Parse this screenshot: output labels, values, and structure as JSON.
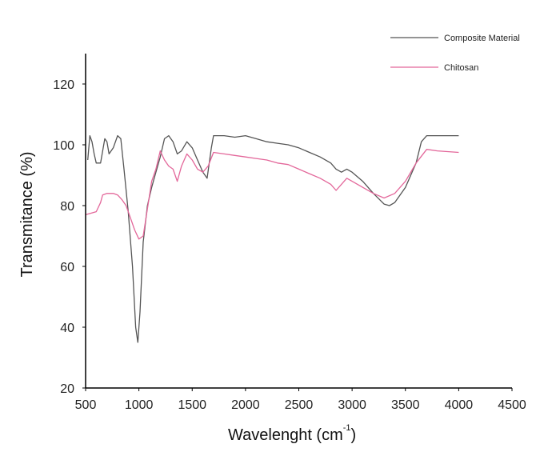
{
  "chart_data": {
    "type": "line",
    "title": "",
    "xlabel": "Wavelenght (cm",
    "xlabel_sup": "-1",
    "xlabel_close": ")",
    "ylabel": "Transmitance (%)",
    "xlim": [
      500,
      4500
    ],
    "ylim": [
      20,
      130
    ],
    "xticks": [
      500,
      1000,
      1500,
      2000,
      2500,
      3000,
      3500,
      4000,
      4500
    ],
    "yticks": [
      20,
      40,
      60,
      80,
      100,
      120
    ],
    "grid": false,
    "legend_position": "top-right",
    "series": [
      {
        "name": "Composite Material",
        "color": "#555555",
        "points": [
          [
            520,
            95
          ],
          [
            540,
            103
          ],
          [
            560,
            101
          ],
          [
            580,
            97
          ],
          [
            600,
            94
          ],
          [
            640,
            94
          ],
          [
            680,
            102
          ],
          [
            700,
            101
          ],
          [
            720,
            97
          ],
          [
            760,
            99
          ],
          [
            800,
            103
          ],
          [
            830,
            102
          ],
          [
            860,
            92
          ],
          [
            900,
            78
          ],
          [
            940,
            60
          ],
          [
            970,
            40
          ],
          [
            990,
            35
          ],
          [
            1010,
            45
          ],
          [
            1040,
            68
          ],
          [
            1080,
            80
          ],
          [
            1120,
            86
          ],
          [
            1160,
            91
          ],
          [
            1200,
            96
          ],
          [
            1240,
            102
          ],
          [
            1280,
            103
          ],
          [
            1320,
            101
          ],
          [
            1360,
            97
          ],
          [
            1400,
            98
          ],
          [
            1450,
            101
          ],
          [
            1500,
            99
          ],
          [
            1550,
            95
          ],
          [
            1600,
            91
          ],
          [
            1640,
            89
          ],
          [
            1680,
            99
          ],
          [
            1700,
            103
          ],
          [
            1800,
            103
          ],
          [
            1900,
            102.5
          ],
          [
            2000,
            103
          ],
          [
            2100,
            102
          ],
          [
            2200,
            101
          ],
          [
            2300,
            100.5
          ],
          [
            2400,
            100
          ],
          [
            2500,
            99
          ],
          [
            2600,
            97.5
          ],
          [
            2700,
            96
          ],
          [
            2800,
            94
          ],
          [
            2850,
            92
          ],
          [
            2900,
            91
          ],
          [
            2950,
            92
          ],
          [
            3000,
            91
          ],
          [
            3100,
            88
          ],
          [
            3200,
            84
          ],
          [
            3300,
            80.5
          ],
          [
            3350,
            80
          ],
          [
            3400,
            81
          ],
          [
            3500,
            86
          ],
          [
            3600,
            94
          ],
          [
            3650,
            101
          ],
          [
            3700,
            103
          ],
          [
            3800,
            103
          ],
          [
            4000,
            103
          ]
        ]
      },
      {
        "name": "Chitosan",
        "color": "#e3679a",
        "points": [
          [
            500,
            77
          ],
          [
            550,
            77.5
          ],
          [
            600,
            78
          ],
          [
            640,
            81
          ],
          [
            660,
            83.5
          ],
          [
            700,
            84
          ],
          [
            760,
            84
          ],
          [
            800,
            83.5
          ],
          [
            840,
            82
          ],
          [
            880,
            80
          ],
          [
            920,
            76
          ],
          [
            960,
            72
          ],
          [
            1000,
            69
          ],
          [
            1040,
            70
          ],
          [
            1080,
            79
          ],
          [
            1120,
            88
          ],
          [
            1160,
            92
          ],
          [
            1200,
            98
          ],
          [
            1240,
            95
          ],
          [
            1280,
            93
          ],
          [
            1320,
            92
          ],
          [
            1360,
            88
          ],
          [
            1400,
            93
          ],
          [
            1450,
            97
          ],
          [
            1500,
            95
          ],
          [
            1550,
            92
          ],
          [
            1600,
            91
          ],
          [
            1650,
            93
          ],
          [
            1700,
            97.5
          ],
          [
            1800,
            97
          ],
          [
            1900,
            96.5
          ],
          [
            2000,
            96
          ],
          [
            2100,
            95.5
          ],
          [
            2200,
            95
          ],
          [
            2300,
            94
          ],
          [
            2400,
            93.5
          ],
          [
            2500,
            92
          ],
          [
            2600,
            90.5
          ],
          [
            2700,
            89
          ],
          [
            2800,
            87
          ],
          [
            2850,
            85
          ],
          [
            2900,
            87
          ],
          [
            2950,
            89
          ],
          [
            3000,
            88
          ],
          [
            3100,
            86
          ],
          [
            3200,
            84
          ],
          [
            3300,
            82.5
          ],
          [
            3400,
            84
          ],
          [
            3500,
            88
          ],
          [
            3600,
            94
          ],
          [
            3700,
            98.5
          ],
          [
            3800,
            98
          ],
          [
            4000,
            97.5
          ]
        ]
      }
    ]
  }
}
